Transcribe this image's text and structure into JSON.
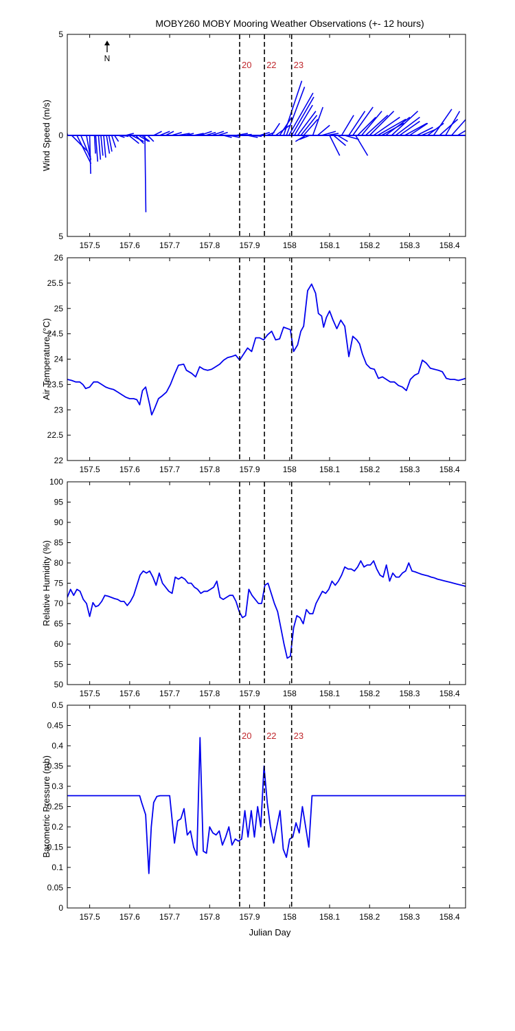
{
  "title": "MOBY260 MOBY Mooring Weather Observations (+- 12 hours)",
  "xlabel": "Julian Day",
  "north_label": "N",
  "markers": [
    {
      "x": 157.875,
      "label": "20"
    },
    {
      "x": 157.937,
      "label": "22"
    },
    {
      "x": 158.005,
      "label": "23"
    }
  ],
  "chart_data": [
    {
      "type": "quiver",
      "ylabel": "Wind Speed (m/s)",
      "xlim": [
        157.444,
        158.44
      ],
      "ylim": [
        -5,
        5
      ],
      "xticks": [
        157.5,
        157.6,
        157.7,
        157.8,
        157.9,
        158,
        158.1,
        158.2,
        158.3,
        158.4
      ],
      "yticks": [
        5,
        0,
        5
      ],
      "show_marker_labels": true,
      "vectors": [
        [
          157.445,
          -0.4,
          1.6
        ],
        [
          157.455,
          0.8,
          -0.8
        ],
        [
          157.468,
          0.7,
          -1.4
        ],
        [
          157.478,
          0.5,
          -1.2
        ],
        [
          157.492,
          0.2,
          -1.1
        ],
        [
          157.5,
          0.05,
          -1.9
        ],
        [
          157.512,
          0.05,
          -0.9
        ],
        [
          157.515,
          0.1,
          -1.3
        ],
        [
          157.522,
          0.1,
          -1.2
        ],
        [
          157.528,
          0.1,
          -1.0
        ],
        [
          157.535,
          0.1,
          -1.1
        ],
        [
          157.542,
          0.15,
          -0.9
        ],
        [
          157.548,
          0.15,
          -0.8
        ],
        [
          157.555,
          0.2,
          -0.6
        ],
        [
          157.562,
          0.2,
          -0.3
        ],
        [
          157.572,
          0.3,
          -0.1
        ],
        [
          157.582,
          0.3,
          -0.05
        ],
        [
          157.59,
          0.4,
          0.1
        ],
        [
          157.598,
          0.5,
          -0.4
        ],
        [
          157.605,
          0.6,
          -0.3
        ],
        [
          157.615,
          0.4,
          -0.4
        ],
        [
          157.622,
          0.5,
          -0.3
        ],
        [
          157.63,
          0.4,
          -0.3
        ],
        [
          157.638,
          0.05,
          -3.8
        ],
        [
          157.645,
          0.3,
          -0.3
        ],
        [
          157.66,
          0.4,
          0.2
        ],
        [
          157.675,
          0.5,
          0.2
        ],
        [
          157.69,
          0.4,
          0.2
        ],
        [
          157.705,
          0.5,
          0.15
        ],
        [
          157.72,
          0.6,
          0.1
        ],
        [
          157.74,
          0.4,
          0.1
        ],
        [
          157.76,
          0.5,
          0.1
        ],
        [
          157.775,
          0.6,
          0.2
        ],
        [
          157.79,
          0.5,
          0.15
        ],
        [
          157.805,
          0.6,
          0.2
        ],
        [
          157.82,
          0.5,
          0.15
        ],
        [
          157.835,
          0.4,
          -0.1
        ],
        [
          157.85,
          0.5,
          -0.1
        ],
        [
          157.865,
          0.6,
          0.1
        ],
        [
          157.88,
          0.5,
          0.05
        ],
        [
          157.895,
          0.5,
          -0.1
        ],
        [
          157.91,
          0.4,
          -0.05
        ],
        [
          157.925,
          0.5,
          0.15
        ],
        [
          157.942,
          0.4,
          0.15
        ],
        [
          157.955,
          0.4,
          0.6
        ],
        [
          157.965,
          0.7,
          0.5
        ],
        [
          157.975,
          0.6,
          0.9
        ],
        [
          157.985,
          0.9,
          2.7
        ],
        [
          157.992,
          0.9,
          2.4
        ],
        [
          157.998,
          1.2,
          2.1
        ],
        [
          158.005,
          1.1,
          1.9
        ],
        [
          158.012,
          0.9,
          1.5
        ],
        [
          158.02,
          0.9,
          1.2
        ],
        [
          158.028,
          0.8,
          1.0
        ],
        [
          158.035,
          0.7,
          0.8
        ],
        [
          158.04,
          -0.5,
          -0.3
        ],
        [
          158.05,
          -0.5,
          -0.2
        ],
        [
          158.058,
          0.5,
          1.4
        ],
        [
          158.07,
          0.6,
          0.5
        ],
        [
          158.08,
          0.7,
          0.2
        ],
        [
          158.092,
          0.6,
          0.1
        ],
        [
          158.1,
          0.5,
          -1.0
        ],
        [
          158.11,
          0.6,
          -0.5
        ],
        [
          158.12,
          0.5,
          -0.3
        ],
        [
          158.13,
          0.6,
          1.0
        ],
        [
          158.138,
          0.7,
          -0.2
        ],
        [
          158.148,
          0.8,
          1.2
        ],
        [
          158.158,
          1.0,
          1.4
        ],
        [
          158.165,
          0.6,
          -1.0
        ],
        [
          158.17,
          0.9,
          0.9
        ],
        [
          158.18,
          1.0,
          1.2
        ],
        [
          158.19,
          1.1,
          1.0
        ],
        [
          158.2,
          1.2,
          1.2
        ],
        [
          158.21,
          1.3,
          0.9
        ],
        [
          158.22,
          1.4,
          0.8
        ],
        [
          158.23,
          1.1,
          0.6
        ],
        [
          158.24,
          1.2,
          0.9
        ],
        [
          158.255,
          1.3,
          1.2
        ],
        [
          158.265,
          1.2,
          0.9
        ],
        [
          158.275,
          1.0,
          0.7
        ],
        [
          158.288,
          1.1,
          0.6
        ],
        [
          158.3,
          0.9,
          0.6
        ],
        [
          158.318,
          0.8,
          0.4
        ],
        [
          158.33,
          0.7,
          0.3
        ],
        [
          158.345,
          0.8,
          0.6
        ],
        [
          158.36,
          0.9,
          1.3
        ],
        [
          158.375,
          0.9,
          0.8
        ],
        [
          158.39,
          0.7,
          1.2
        ],
        [
          158.405,
          0.8,
          0.9
        ],
        [
          158.42,
          0.5,
          0.3
        ],
        [
          158.44,
          0.3,
          0.1
        ]
      ]
    },
    {
      "type": "line",
      "ylabel": "Air Temperature (°C)",
      "xlim": [
        157.444,
        158.44
      ],
      "ylim": [
        22,
        26
      ],
      "xticks": [
        157.5,
        157.6,
        157.7,
        157.8,
        157.9,
        158,
        158.1,
        158.2,
        158.3,
        158.4
      ],
      "yticks": [
        22,
        22.5,
        23,
        23.5,
        24,
        24.5,
        25,
        25.5,
        26
      ],
      "show_marker_labels": false,
      "x": [
        157.444,
        157.455,
        157.465,
        157.475,
        157.483,
        157.49,
        157.5,
        157.51,
        157.52,
        157.53,
        157.54,
        157.55,
        157.56,
        157.57,
        157.58,
        157.59,
        157.6,
        157.61,
        157.618,
        157.625,
        157.632,
        157.64,
        157.65,
        157.655,
        157.662,
        157.672,
        157.682,
        157.692,
        157.702,
        157.712,
        157.722,
        157.735,
        157.742,
        157.755,
        157.765,
        157.775,
        157.785,
        157.795,
        157.805,
        157.815,
        157.825,
        157.835,
        157.845,
        157.855,
        157.865,
        157.875,
        157.885,
        157.895,
        157.905,
        157.915,
        157.925,
        157.935,
        157.945,
        157.955,
        157.965,
        157.975,
        157.985,
        157.995,
        158.002,
        158.01,
        158.02,
        158.028,
        158.035,
        158.045,
        158.055,
        158.065,
        158.072,
        158.08,
        158.085,
        158.092,
        158.1,
        158.108,
        158.118,
        158.128,
        158.138,
        158.148,
        158.158,
        158.168,
        158.175,
        158.182,
        158.192,
        158.202,
        158.212,
        158.222,
        158.232,
        158.242,
        158.252,
        158.262,
        158.272,
        158.282,
        158.292,
        158.302,
        158.312,
        158.322,
        158.332,
        158.342,
        158.352,
        158.362,
        158.372,
        158.382,
        158.392,
        158.402,
        158.412,
        158.422,
        158.432,
        158.44
      ],
      "values": [
        23.6,
        23.58,
        23.55,
        23.55,
        23.5,
        23.42,
        23.45,
        23.55,
        23.55,
        23.5,
        23.45,
        23.42,
        23.4,
        23.35,
        23.3,
        23.25,
        23.22,
        23.22,
        23.2,
        23.1,
        23.38,
        23.45,
        23.1,
        22.9,
        23.02,
        23.22,
        23.28,
        23.35,
        23.5,
        23.7,
        23.88,
        23.9,
        23.78,
        23.72,
        23.65,
        23.85,
        23.8,
        23.78,
        23.8,
        23.85,
        23.9,
        23.98,
        24.03,
        24.05,
        24.08,
        23.98,
        24.1,
        24.22,
        24.15,
        24.42,
        24.42,
        24.38,
        24.48,
        24.55,
        24.38,
        24.4,
        24.63,
        24.6,
        24.58,
        24.15,
        24.28,
        24.55,
        24.65,
        25.35,
        25.48,
        25.3,
        24.9,
        24.85,
        24.63,
        24.82,
        24.95,
        24.78,
        24.6,
        24.77,
        24.65,
        24.05,
        24.45,
        24.38,
        24.3,
        24.1,
        23.9,
        23.82,
        23.8,
        23.62,
        23.65,
        23.6,
        23.55,
        23.55,
        23.48,
        23.45,
        23.38,
        23.6,
        23.68,
        23.72,
        23.98,
        23.92,
        23.82,
        23.8,
        23.78,
        23.75,
        23.62,
        23.6,
        23.6,
        23.58,
        23.6,
        23.62
      ]
    },
    {
      "type": "line",
      "ylabel": "Relative Humidity (%)",
      "xlim": [
        157.444,
        158.44
      ],
      "ylim": [
        50,
        100
      ],
      "xticks": [
        157.5,
        157.6,
        157.7,
        157.8,
        157.9,
        158,
        158.1,
        158.2,
        158.3,
        158.4
      ],
      "yticks": [
        50,
        55,
        60,
        65,
        70,
        75,
        80,
        85,
        90,
        95,
        100
      ],
      "show_marker_labels": false,
      "x": [
        157.444,
        157.452,
        157.46,
        157.468,
        157.476,
        157.484,
        157.492,
        157.5,
        157.508,
        157.515,
        157.522,
        157.53,
        157.538,
        157.546,
        157.554,
        157.562,
        157.57,
        157.578,
        157.586,
        157.594,
        157.602,
        157.61,
        157.618,
        157.626,
        157.634,
        157.642,
        157.65,
        157.658,
        157.666,
        157.674,
        157.682,
        157.69,
        157.698,
        157.706,
        157.714,
        157.722,
        157.73,
        157.738,
        157.746,
        157.754,
        157.762,
        157.77,
        157.778,
        157.786,
        157.794,
        157.802,
        157.81,
        157.818,
        157.826,
        157.834,
        157.842,
        157.85,
        157.858,
        157.866,
        157.874,
        157.882,
        157.89,
        157.898,
        157.906,
        157.914,
        157.922,
        157.93,
        157.938,
        157.946,
        157.954,
        157.962,
        157.97,
        157.978,
        157.986,
        157.994,
        158.002,
        158.01,
        158.018,
        158.026,
        158.034,
        158.042,
        158.05,
        158.058,
        158.066,
        158.074,
        158.082,
        158.09,
        158.098,
        158.106,
        158.114,
        158.122,
        158.13,
        158.138,
        158.146,
        158.154,
        158.162,
        158.17,
        158.178,
        158.186,
        158.194,
        158.202,
        158.21,
        158.218,
        158.226,
        158.234,
        158.242,
        158.25,
        158.258,
        158.266,
        158.274,
        158.282,
        158.29,
        158.298,
        158.306,
        158.314,
        158.322,
        158.33,
        158.338,
        158.346,
        158.354,
        158.362,
        158.37,
        158.378,
        158.386,
        158.394,
        158.402,
        158.41,
        158.418,
        158.426,
        158.434,
        158.44
      ],
      "values": [
        71.5,
        73.5,
        72.0,
        73.5,
        73.0,
        71.0,
        70.0,
        66.8,
        70.2,
        69.2,
        69.5,
        70.5,
        72.0,
        71.8,
        71.5,
        71.2,
        71.0,
        70.5,
        70.5,
        69.5,
        70.5,
        72.0,
        74.5,
        77.0,
        78.0,
        77.5,
        78.0,
        76.5,
        74.5,
        77.5,
        75.0,
        74.0,
        73.0,
        72.5,
        76.5,
        76.0,
        76.5,
        76.0,
        75.0,
        75.0,
        74.0,
        73.5,
        72.5,
        73.0,
        73.0,
        73.5,
        74.0,
        75.5,
        71.5,
        71.0,
        71.5,
        72.0,
        72.0,
        70.5,
        68.0,
        66.5,
        67.0,
        73.5,
        72.0,
        71.0,
        70.0,
        70.0,
        74.5,
        75.0,
        72.5,
        70.0,
        68.0,
        64.0,
        60.0,
        56.5,
        57.0,
        64.0,
        67.0,
        66.5,
        65.0,
        68.5,
        67.5,
        67.5,
        70.0,
        71.5,
        73.0,
        72.5,
        73.5,
        75.5,
        74.5,
        75.5,
        77.0,
        79.0,
        78.5,
        78.5,
        78.0,
        79.0,
        80.5,
        79.0,
        79.5,
        79.5,
        80.5,
        78.5,
        77.0,
        76.5,
        79.5,
        75.5,
        77.5,
        76.5,
        76.5,
        77.5,
        78.0,
        80.0,
        78.0,
        77.8,
        77.5,
        77.2,
        77.0,
        76.8,
        76.5,
        76.3,
        76.0,
        75.8,
        75.6,
        75.4,
        75.2,
        75.0,
        74.8,
        74.6,
        74.4,
        74.2
      ]
    },
    {
      "type": "line",
      "ylabel": "Barometric Pressure (mb)",
      "xlim": [
        157.444,
        158.44
      ],
      "ylim": [
        0,
        0.5
      ],
      "xticks": [
        157.5,
        157.6,
        157.7,
        157.8,
        157.9,
        158,
        158.1,
        158.2,
        158.3,
        158.4
      ],
      "yticks": [
        0,
        0.05,
        0.1,
        0.15,
        0.2,
        0.25,
        0.3,
        0.35,
        0.4,
        0.45,
        0.5
      ],
      "show_marker_labels": true,
      "x": [
        157.444,
        157.6,
        157.625,
        157.63,
        157.64,
        157.648,
        157.654,
        157.66,
        157.668,
        157.676,
        157.684,
        157.7,
        157.712,
        157.72,
        157.728,
        157.736,
        157.744,
        157.752,
        157.76,
        157.768,
        157.776,
        157.784,
        157.792,
        157.8,
        157.808,
        157.816,
        157.824,
        157.832,
        157.84,
        157.848,
        157.856,
        157.864,
        157.872,
        157.88,
        157.888,
        157.896,
        157.904,
        157.912,
        157.92,
        157.928,
        157.936,
        157.944,
        157.952,
        157.96,
        157.968,
        157.976,
        157.984,
        157.992,
        158.0,
        158.008,
        158.016,
        158.024,
        158.032,
        158.04,
        158.048,
        158.056,
        158.064,
        158.072,
        158.08,
        158.088,
        158.096,
        158.104,
        158.112,
        158.12,
        158.128,
        158.136,
        158.144,
        158.152,
        158.16,
        158.165,
        158.44
      ],
      "values": [
        0.277,
        0.277,
        0.277,
        0.26,
        0.23,
        0.085,
        0.2,
        0.26,
        0.275,
        0.277,
        0.277,
        0.277,
        0.16,
        0.215,
        0.22,
        0.245,
        0.18,
        0.19,
        0.15,
        0.13,
        0.42,
        0.14,
        0.135,
        0.2,
        0.185,
        0.18,
        0.19,
        0.155,
        0.175,
        0.2,
        0.155,
        0.17,
        0.165,
        0.17,
        0.24,
        0.175,
        0.24,
        0.175,
        0.25,
        0.2,
        0.35,
        0.26,
        0.2,
        0.16,
        0.2,
        0.24,
        0.145,
        0.125,
        0.17,
        0.175,
        0.21,
        0.185,
        0.25,
        0.2,
        0.15,
        0.277,
        0.277,
        0.277,
        0.277,
        0.277,
        0.277,
        0.277,
        0.277,
        0.277,
        0.277,
        0.277,
        0.277,
        0.277,
        0.277,
        0.277,
        0.277
      ]
    }
  ]
}
